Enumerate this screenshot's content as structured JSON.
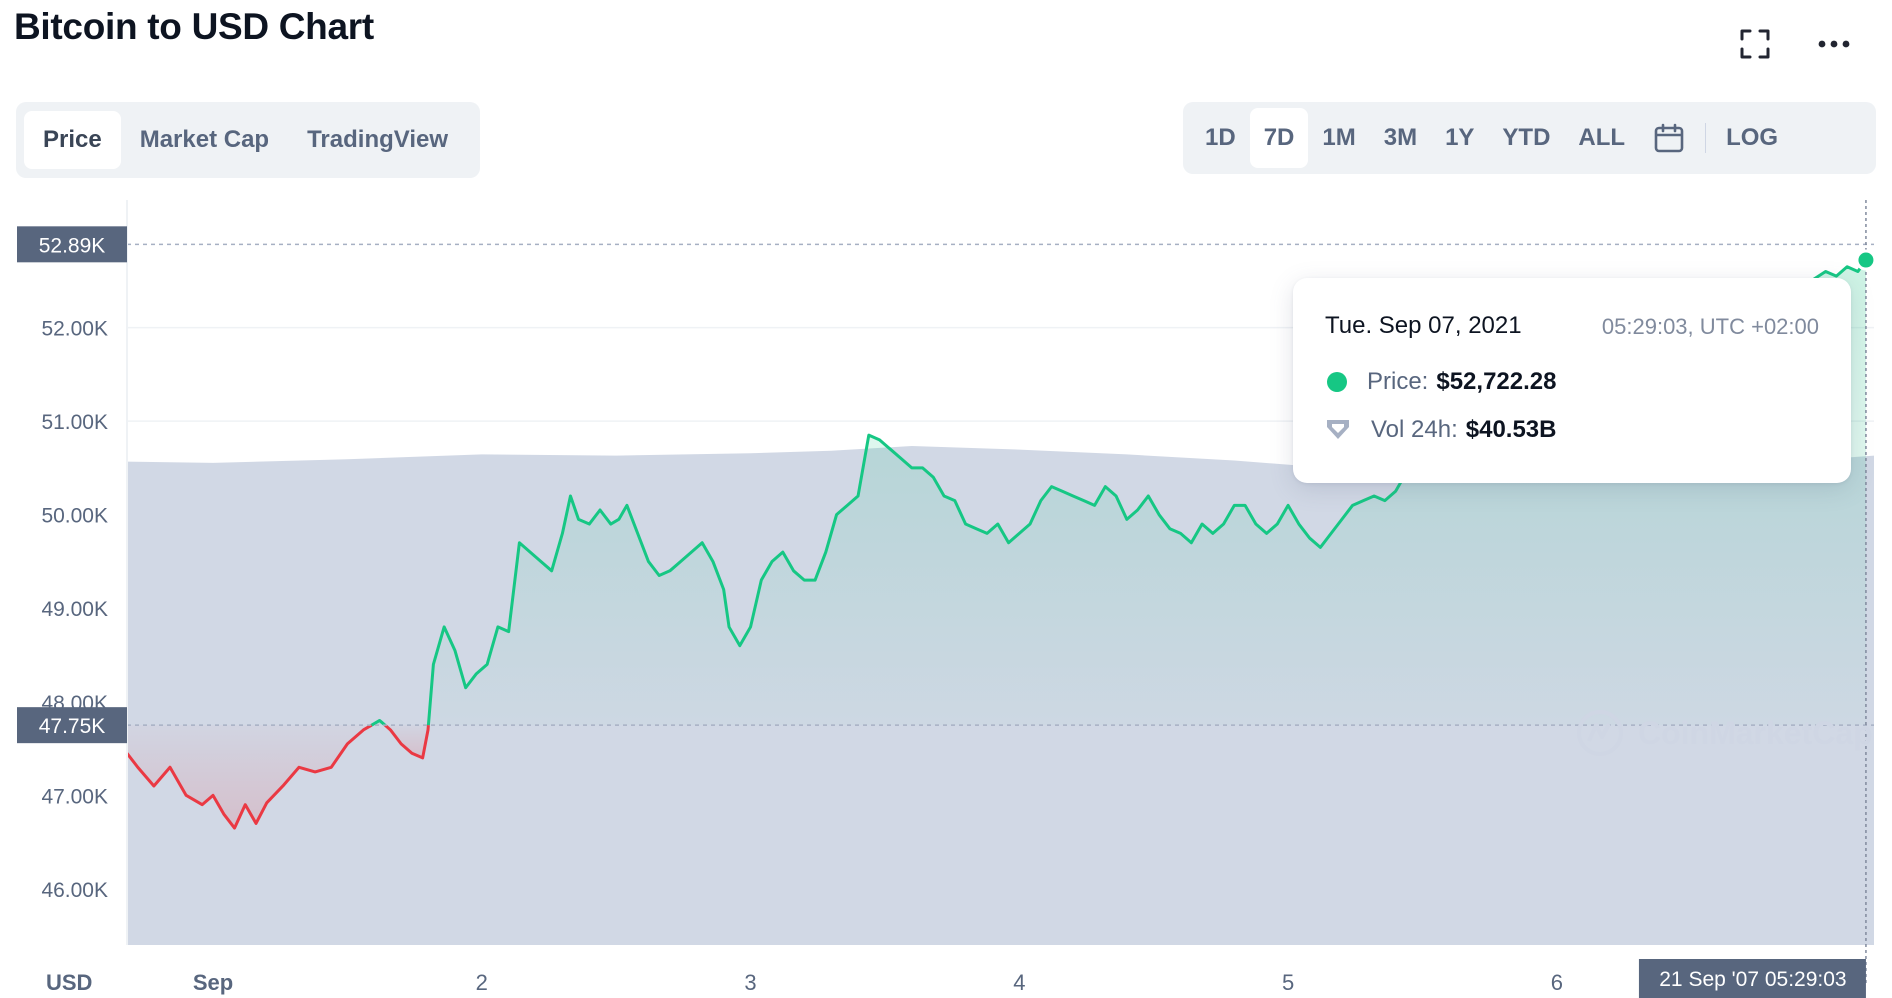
{
  "header": {
    "title": "Bitcoin to USD Chart"
  },
  "icons": {
    "expand": "expand-icon",
    "more": "more-icon",
    "calendar": "calendar-icon",
    "volume": "volume-icon",
    "watermark_logo": "coinmarketcap-logo-icon"
  },
  "chart_tabs": [
    {
      "label": "Price",
      "active": true
    },
    {
      "label": "Market Cap",
      "active": false
    },
    {
      "label": "TradingView",
      "active": false
    }
  ],
  "ranges": [
    {
      "label": "1D",
      "active": false
    },
    {
      "label": "7D",
      "active": true
    },
    {
      "label": "1M",
      "active": false
    },
    {
      "label": "3M",
      "active": false
    },
    {
      "label": "1Y",
      "active": false
    },
    {
      "label": "YTD",
      "active": false
    },
    {
      "label": "ALL",
      "active": false
    }
  ],
  "log_label": "LOG",
  "tooltip": {
    "date": "Tue. Sep 07, 2021",
    "time": "05:29:03, UTC +02:00",
    "price_label": "Price:",
    "price_value": "$52,722.28",
    "vol_label": "Vol 24h:",
    "vol_value": "$40.53B"
  },
  "watermark": "CoinMarketCap",
  "colors": {
    "up": "#16c784",
    "down": "#ea3943",
    "volume": "#cfd6e4",
    "marker": "#58667e"
  },
  "chart_data": {
    "type": "line",
    "title": "Bitcoin to USD Chart",
    "currency_label": "USD",
    "ylim": [
      45400,
      53150
    ],
    "y_ticks": [
      "46.00K",
      "47.00K",
      "48.00K",
      "49.00K",
      "50.00K",
      "51.00K",
      "52.00K",
      "52.89K"
    ],
    "y_tick_values": [
      46000,
      47000,
      48000,
      49000,
      50000,
      51000,
      52000,
      52890
    ],
    "xlim": [
      0.68,
      7.18
    ],
    "x_ticks": [
      {
        "label": "Sep",
        "value": 1
      },
      {
        "label": "2",
        "value": 2
      },
      {
        "label": "3",
        "value": 3
      },
      {
        "label": "4",
        "value": 4
      },
      {
        "label": "5",
        "value": 5
      },
      {
        "label": "6",
        "value": 6
      }
    ],
    "reference_price": 47750,
    "reference_label": "47.75K",
    "high_label": "52.89K",
    "cursor_label": "21 Sep '07 05:29:03",
    "cursor_x": 7.15,
    "price_points": [
      [
        0.68,
        47450
      ],
      [
        0.72,
        47300
      ],
      [
        0.78,
        47100
      ],
      [
        0.84,
        47300
      ],
      [
        0.9,
        47000
      ],
      [
        0.96,
        46900
      ],
      [
        1.0,
        47000
      ],
      [
        1.04,
        46800
      ],
      [
        1.08,
        46650
      ],
      [
        1.12,
        46900
      ],
      [
        1.16,
        46700
      ],
      [
        1.2,
        46920
      ],
      [
        1.26,
        47100
      ],
      [
        1.32,
        47300
      ],
      [
        1.38,
        47250
      ],
      [
        1.44,
        47300
      ],
      [
        1.5,
        47550
      ],
      [
        1.56,
        47700
      ],
      [
        1.62,
        47800
      ],
      [
        1.66,
        47700
      ],
      [
        1.7,
        47550
      ],
      [
        1.74,
        47450
      ],
      [
        1.78,
        47400
      ],
      [
        1.8,
        47700
      ],
      [
        1.82,
        48400
      ],
      [
        1.86,
        48800
      ],
      [
        1.9,
        48550
      ],
      [
        1.94,
        48150
      ],
      [
        1.98,
        48300
      ],
      [
        2.02,
        48400
      ],
      [
        2.06,
        48800
      ],
      [
        2.1,
        48750
      ],
      [
        2.14,
        49700
      ],
      [
        2.18,
        49600
      ],
      [
        2.22,
        49500
      ],
      [
        2.26,
        49400
      ],
      [
        2.3,
        49800
      ],
      [
        2.33,
        50200
      ],
      [
        2.36,
        49950
      ],
      [
        2.4,
        49900
      ],
      [
        2.44,
        50050
      ],
      [
        2.48,
        49900
      ],
      [
        2.51,
        49950
      ],
      [
        2.54,
        50100
      ],
      [
        2.58,
        49800
      ],
      [
        2.62,
        49500
      ],
      [
        2.66,
        49350
      ],
      [
        2.7,
        49400
      ],
      [
        2.74,
        49500
      ],
      [
        2.78,
        49600
      ],
      [
        2.82,
        49700
      ],
      [
        2.86,
        49500
      ],
      [
        2.9,
        49200
      ],
      [
        2.92,
        48800
      ],
      [
        2.96,
        48600
      ],
      [
        3.0,
        48800
      ],
      [
        3.04,
        49300
      ],
      [
        3.08,
        49500
      ],
      [
        3.12,
        49600
      ],
      [
        3.16,
        49400
      ],
      [
        3.2,
        49300
      ],
      [
        3.24,
        49300
      ],
      [
        3.28,
        49600
      ],
      [
        3.32,
        50000
      ],
      [
        3.36,
        50100
      ],
      [
        3.4,
        50200
      ],
      [
        3.44,
        50850
      ],
      [
        3.48,
        50800
      ],
      [
        3.52,
        50700
      ],
      [
        3.56,
        50600
      ],
      [
        3.6,
        50500
      ],
      [
        3.64,
        50500
      ],
      [
        3.68,
        50400
      ],
      [
        3.72,
        50200
      ],
      [
        3.76,
        50150
      ],
      [
        3.8,
        49900
      ],
      [
        3.84,
        49850
      ],
      [
        3.88,
        49800
      ],
      [
        3.92,
        49900
      ],
      [
        3.96,
        49700
      ],
      [
        4.0,
        49800
      ],
      [
        4.04,
        49900
      ],
      [
        4.08,
        50150
      ],
      [
        4.12,
        50300
      ],
      [
        4.16,
        50250
      ],
      [
        4.2,
        50200
      ],
      [
        4.24,
        50150
      ],
      [
        4.28,
        50100
      ],
      [
        4.32,
        50300
      ],
      [
        4.36,
        50200
      ],
      [
        4.4,
        49950
      ],
      [
        4.44,
        50050
      ],
      [
        4.48,
        50200
      ],
      [
        4.52,
        50000
      ],
      [
        4.56,
        49850
      ],
      [
        4.6,
        49800
      ],
      [
        4.64,
        49700
      ],
      [
        4.68,
        49900
      ],
      [
        4.72,
        49800
      ],
      [
        4.76,
        49900
      ],
      [
        4.8,
        50100
      ],
      [
        4.84,
        50100
      ],
      [
        4.88,
        49900
      ],
      [
        4.92,
        49800
      ],
      [
        4.96,
        49900
      ],
      [
        5.0,
        50100
      ],
      [
        5.04,
        49900
      ],
      [
        5.08,
        49750
      ],
      [
        5.12,
        49650
      ],
      [
        5.16,
        49800
      ],
      [
        5.2,
        49950
      ],
      [
        5.24,
        50100
      ],
      [
        5.28,
        50150
      ],
      [
        5.32,
        50200
      ],
      [
        5.36,
        50150
      ],
      [
        5.4,
        50250
      ],
      [
        5.42,
        50350
      ],
      [
        5.48,
        50800
      ],
      [
        5.56,
        51200
      ],
      [
        5.64,
        51500
      ],
      [
        5.72,
        51700
      ],
      [
        5.8,
        51750
      ],
      [
        5.88,
        51800
      ],
      [
        5.96,
        51900
      ],
      [
        6.04,
        52000
      ],
      [
        6.12,
        52100
      ],
      [
        6.2,
        52050
      ],
      [
        6.28,
        52150
      ],
      [
        6.36,
        52200
      ],
      [
        6.44,
        52300
      ],
      [
        6.52,
        52250
      ],
      [
        6.6,
        52300
      ],
      [
        6.68,
        52400
      ],
      [
        6.76,
        52350
      ],
      [
        6.84,
        52500
      ],
      [
        6.92,
        52450
      ],
      [
        7.0,
        52600
      ],
      [
        7.04,
        52550
      ],
      [
        7.08,
        52650
      ],
      [
        7.12,
        52600
      ],
      [
        7.15,
        52722
      ]
    ],
    "volume_points_usd_b": [
      [
        0.68,
        40.0
      ],
      [
        1.0,
        39.9
      ],
      [
        1.5,
        40.2
      ],
      [
        2.0,
        40.6
      ],
      [
        2.5,
        40.5
      ],
      [
        3.0,
        40.7
      ],
      [
        3.3,
        40.9
      ],
      [
        3.6,
        41.3
      ],
      [
        4.0,
        41.0
      ],
      [
        4.4,
        40.6
      ],
      [
        4.8,
        40.1
      ],
      [
        5.2,
        39.4
      ],
      [
        5.6,
        38.9
      ],
      [
        6.0,
        39.1
      ],
      [
        6.4,
        39.4
      ],
      [
        6.8,
        39.9
      ],
      [
        7.18,
        40.5
      ]
    ],
    "volume_axis_max_b": 60
  }
}
